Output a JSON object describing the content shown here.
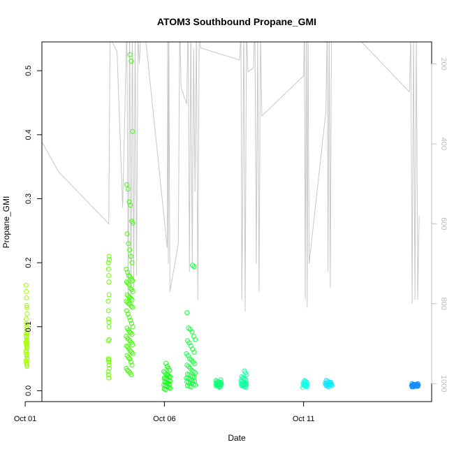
{
  "chart_data": {
    "type": "scatter",
    "title": "ATOM3 Southbound Propane_GMI",
    "xlabel": "Date",
    "ylabel": "Propane_GMI",
    "x_ticks": [
      "Oct 01",
      "Oct 06",
      "Oct 11"
    ],
    "y_ticks": [
      "0.0",
      "0.1",
      "0.2",
      "0.3",
      "0.4",
      "0.5"
    ],
    "y2_ticks": [
      "200",
      "400",
      "600",
      "800",
      "1000"
    ],
    "xlim_days": [
      0.6,
      14.6
    ],
    "ylim": [
      -0.017,
      0.545
    ],
    "y2lim": [
      1045,
      145
    ],
    "y2_reversed": true,
    "grid": false,
    "clusters": [
      {
        "day": 0.05,
        "spread": 0.02,
        "color": "#9eff00",
        "values": [
          0.165,
          0.155,
          0.145,
          0.133,
          0.13,
          0.12,
          0.112,
          0.105,
          0.1,
          0.097,
          0.093,
          0.09,
          0.088,
          0.085,
          0.083,
          0.08,
          0.078,
          0.076,
          0.074,
          0.072,
          0.07,
          0.068,
          0.066,
          0.063,
          0.06,
          0.057,
          0.055,
          0.052,
          0.05,
          0.047,
          0.044,
          0.042,
          0.04,
          0.038
        ]
      },
      {
        "day": 3.0,
        "spread": 0.02,
        "color": "#66ff00",
        "values": [
          0.21,
          0.205,
          0.2,
          0.19,
          0.18,
          0.17,
          0.15,
          0.14,
          0.125,
          0.112,
          0.107,
          0.1,
          0.08,
          0.078,
          0.05,
          0.048,
          0.045,
          0.04,
          0.035,
          0.03,
          0.025,
          0.02
        ]
      },
      {
        "day": 3.75,
        "spread": 0.12,
        "color": "#3cff00",
        "values": [
          0.525,
          0.515,
          0.405,
          0.322,
          0.315,
          0.295,
          0.29,
          0.265,
          0.262,
          0.245,
          0.23,
          0.22,
          0.21,
          0.2,
          0.19,
          0.185,
          0.18,
          0.178,
          0.175,
          0.172,
          0.17,
          0.168,
          0.165,
          0.16,
          0.158,
          0.155,
          0.15,
          0.148,
          0.146,
          0.144,
          0.142,
          0.14,
          0.138,
          0.136,
          0.135,
          0.132,
          0.13,
          0.125,
          0.12,
          0.115,
          0.11,
          0.105,
          0.1,
          0.098,
          0.095,
          0.092,
          0.09,
          0.088,
          0.085,
          0.082,
          0.08,
          0.078,
          0.075,
          0.072,
          0.07,
          0.068,
          0.065,
          0.062,
          0.06,
          0.058,
          0.055,
          0.052,
          0.05,
          0.045,
          0.04,
          0.035,
          0.032,
          0.03,
          0.028,
          0.025
        ]
      },
      {
        "day": 5.1,
        "spread": 0.12,
        "color": "#14ff14",
        "values": [
          0.043,
          0.038,
          0.035,
          0.032,
          0.03,
          0.028,
          0.026,
          0.025,
          0.023,
          0.022,
          0.02,
          0.019,
          0.018,
          0.017,
          0.016,
          0.015,
          0.014,
          0.013,
          0.012,
          0.011,
          0.01,
          0.009,
          0.008,
          0.007,
          0.006,
          0.005,
          0.004,
          0.003,
          0.002
        ]
      },
      {
        "day": 5.95,
        "spread": 0.16,
        "color": "#14ff3c",
        "values": [
          0.122,
          0.098,
          0.096,
          0.092,
          0.085,
          0.08,
          0.078,
          0.075,
          0.07,
          0.065,
          0.06,
          0.058,
          0.055,
          0.05,
          0.048,
          0.045,
          0.042,
          0.04,
          0.038,
          0.035,
          0.032,
          0.03,
          0.028,
          0.026,
          0.025,
          0.023,
          0.022,
          0.021,
          0.02,
          0.019,
          0.018,
          0.017,
          0.016,
          0.015,
          0.014,
          0.013,
          0.012,
          0.011,
          0.01,
          0.009,
          0.008,
          0.007,
          0.006,
          0.196,
          0.194
        ]
      },
      {
        "day": 6.95,
        "spread": 0.1,
        "color": "#14ff78",
        "values": [
          0.017,
          0.016,
          0.015,
          0.014,
          0.014,
          0.013,
          0.013,
          0.012,
          0.012,
          0.011,
          0.011,
          0.011,
          0.01,
          0.01,
          0.01,
          0.009,
          0.009,
          0.009,
          0.008,
          0.008,
          0.007,
          0.006,
          0.005
        ]
      },
      {
        "day": 7.85,
        "spread": 0.1,
        "color": "#14ffa0",
        "values": [
          0.031,
          0.028,
          0.025,
          0.022,
          0.02,
          0.019,
          0.018,
          0.017,
          0.016,
          0.015,
          0.014,
          0.013,
          0.012,
          0.012,
          0.011,
          0.011,
          0.01,
          0.01,
          0.009,
          0.009,
          0.008,
          0.008,
          0.007,
          0.006,
          0.005
        ]
      },
      {
        "day": 10.05,
        "spread": 0.08,
        "color": "#14ffe6",
        "values": [
          0.016,
          0.015,
          0.014,
          0.013,
          0.012,
          0.011,
          0.011,
          0.01,
          0.01,
          0.009,
          0.009,
          0.008,
          0.008,
          0.007,
          0.006,
          0.005
        ]
      },
      {
        "day": 10.9,
        "spread": 0.12,
        "color": "#14e6ff",
        "values": [
          0.016,
          0.015,
          0.014,
          0.013,
          0.013,
          0.012,
          0.012,
          0.011,
          0.011,
          0.011,
          0.01,
          0.01,
          0.01,
          0.009,
          0.009,
          0.009,
          0.008,
          0.008,
          0.007,
          0.006
        ]
      },
      {
        "day": 14.0,
        "spread": 0.12,
        "color": "#148cff",
        "values": [
          0.011,
          0.011,
          0.01,
          0.01,
          0.01,
          0.01,
          0.009,
          0.009,
          0.009,
          0.009,
          0.009,
          0.008,
          0.008,
          0.008,
          0.008,
          0.007,
          0.007,
          0.007,
          0.006,
          0.006
        ]
      }
    ],
    "profile_color": "#c8c8c8",
    "profile_line": [
      [
        0.0,
        1010
      ],
      [
        0.0,
        120
      ],
      [
        0.02,
        520
      ],
      [
        0.04,
        700
      ],
      [
        0.06,
        145
      ],
      [
        0.08,
        330
      ],
      [
        1.2,
        470
      ],
      [
        3.0,
        600
      ],
      [
        3.05,
        135
      ],
      [
        3.3,
        170
      ],
      [
        3.5,
        560
      ],
      [
        3.65,
        100
      ],
      [
        3.7,
        780
      ],
      [
        3.75,
        100
      ],
      [
        3.8,
        800
      ],
      [
        3.85,
        100
      ],
      [
        3.9,
        760
      ],
      [
        3.95,
        120
      ],
      [
        4.0,
        730
      ],
      [
        4.05,
        130
      ],
      [
        4.1,
        200
      ],
      [
        4.15,
        130
      ],
      [
        4.3,
        120
      ],
      [
        5.1,
        660
      ],
      [
        5.12,
        120
      ],
      [
        5.14,
        700
      ],
      [
        5.16,
        110
      ],
      [
        5.2,
        770
      ],
      [
        5.5,
        650
      ],
      [
        5.55,
        90
      ],
      [
        5.6,
        260
      ],
      [
        5.8,
        300
      ],
      [
        5.85,
        100
      ],
      [
        5.9,
        720
      ],
      [
        5.95,
        100
      ],
      [
        6.0,
        700
      ],
      [
        6.05,
        160
      ],
      [
        6.1,
        520
      ],
      [
        6.15,
        110
      ],
      [
        6.2,
        790
      ],
      [
        6.25,
        120
      ],
      [
        6.3,
        160
      ],
      [
        7.7,
        190
      ],
      [
        7.75,
        120
      ],
      [
        7.78,
        790
      ],
      [
        7.8,
        650
      ],
      [
        7.85,
        100
      ],
      [
        7.9,
        820
      ],
      [
        7.95,
        110
      ],
      [
        8.0,
        220
      ],
      [
        8.2,
        210
      ],
      [
        8.25,
        100
      ],
      [
        8.3,
        700
      ],
      [
        8.35,
        130
      ],
      [
        8.4,
        770
      ],
      [
        8.45,
        120
      ],
      [
        8.5,
        330
      ],
      [
        10.0,
        230
      ],
      [
        10.03,
        100
      ],
      [
        10.06,
        790
      ],
      [
        10.1,
        110
      ],
      [
        10.13,
        810
      ],
      [
        10.16,
        100
      ],
      [
        10.2,
        700
      ],
      [
        10.8,
        320
      ],
      [
        10.85,
        110
      ],
      [
        10.88,
        720
      ],
      [
        10.92,
        100
      ],
      [
        10.96,
        760
      ],
      [
        11.0,
        120
      ],
      [
        11.2,
        100
      ],
      [
        11.6,
        110
      ],
      [
        13.8,
        270
      ],
      [
        13.85,
        130
      ],
      [
        13.9,
        800
      ],
      [
        13.95,
        120
      ],
      [
        14.0,
        790
      ],
      [
        14.05,
        120
      ],
      [
        14.1,
        790
      ],
      [
        14.15,
        580
      ]
    ]
  }
}
